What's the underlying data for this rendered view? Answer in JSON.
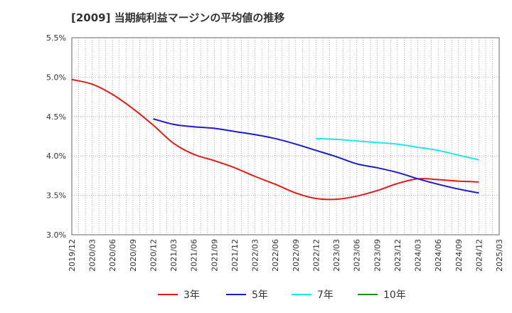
{
  "chart_data": {
    "type": "line",
    "title": "[2009]  当期純利益マージンの平均値の推移",
    "ylim": [
      3.0,
      5.5
    ],
    "y_ticks": [
      "3.0%",
      "3.5%",
      "4.0%",
      "4.5%",
      "5.0%",
      "5.5%"
    ],
    "y_tick_values": [
      3.0,
      3.5,
      4.0,
      4.5,
      5.0,
      5.5
    ],
    "x_ticks": [
      "2019/12",
      "2020/03",
      "2020/06",
      "2020/09",
      "2020/12",
      "2021/03",
      "2021/06",
      "2021/09",
      "2021/12",
      "2022/03",
      "2022/06",
      "2022/09",
      "2022/12",
      "2023/03",
      "2023/06",
      "2023/09",
      "2023/12",
      "2024/03",
      "2024/06",
      "2024/09",
      "2024/12",
      "2025/03"
    ],
    "grid": true,
    "legend_position": "bottom",
    "series": [
      {
        "name": "3年",
        "color": "#e31a1c",
        "x": [
          "2019/12",
          "2020/03",
          "2020/06",
          "2020/09",
          "2020/12",
          "2021/03",
          "2021/06",
          "2021/09",
          "2021/12",
          "2022/03",
          "2022/06",
          "2022/09",
          "2022/12",
          "2023/03",
          "2023/06",
          "2023/09",
          "2023/12",
          "2024/03",
          "2024/06",
          "2024/09",
          "2024/12"
        ],
        "values": [
          4.97,
          4.91,
          4.78,
          4.6,
          4.39,
          4.16,
          4.02,
          3.94,
          3.85,
          3.74,
          3.64,
          3.53,
          3.46,
          3.45,
          3.49,
          3.56,
          3.65,
          3.71,
          3.7,
          3.68,
          3.67
        ]
      },
      {
        "name": "5年",
        "color": "#1c1ccc",
        "x": [
          "2020/12",
          "2021/03",
          "2021/06",
          "2021/09",
          "2021/12",
          "2022/03",
          "2022/06",
          "2022/09",
          "2022/12",
          "2023/03",
          "2023/06",
          "2023/09",
          "2023/12",
          "2024/03",
          "2024/06",
          "2024/09",
          "2024/12"
        ],
        "values": [
          4.47,
          4.4,
          4.37,
          4.35,
          4.31,
          4.27,
          4.22,
          4.15,
          4.07,
          3.99,
          3.9,
          3.85,
          3.79,
          3.71,
          3.64,
          3.58,
          3.53
        ]
      },
      {
        "name": "7年",
        "color": "#1ee5ee",
        "x": [
          "2022/12",
          "2023/03",
          "2023/06",
          "2023/09",
          "2023/12",
          "2024/03",
          "2024/06",
          "2024/09",
          "2024/12"
        ],
        "values": [
          4.22,
          4.21,
          4.19,
          4.17,
          4.15,
          4.11,
          4.07,
          4.01,
          3.95
        ]
      },
      {
        "name": "10年",
        "color": "#228b22",
        "x": [],
        "values": []
      }
    ]
  }
}
